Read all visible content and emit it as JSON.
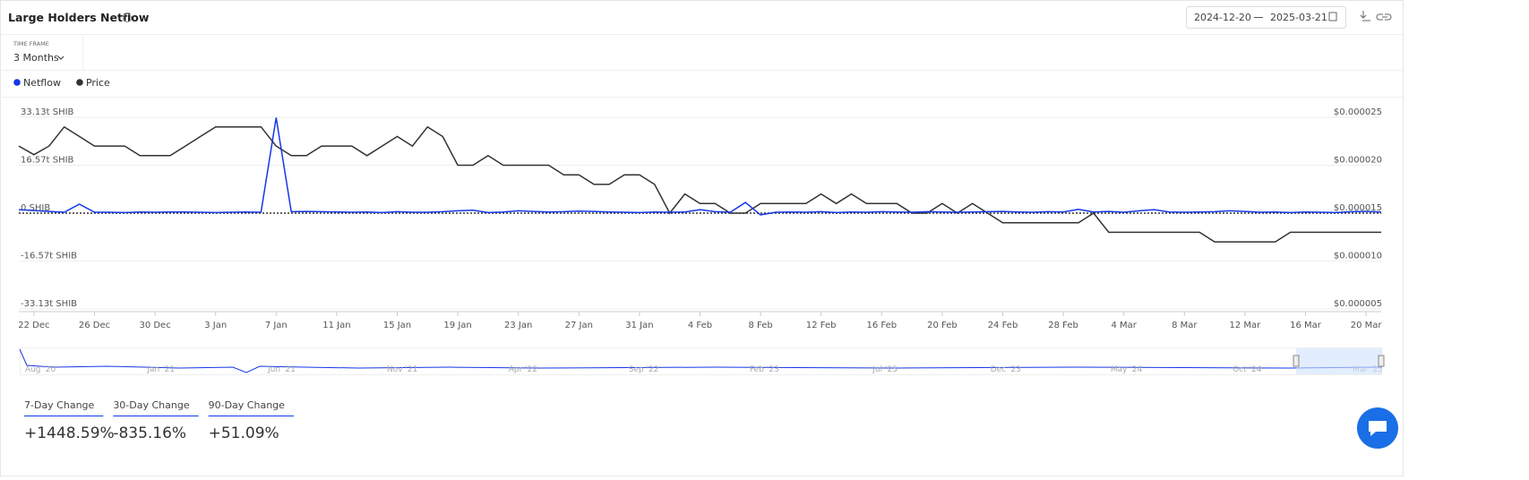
{
  "header": {
    "title": "Large Holders Netflow",
    "date_from": "2024-12-20",
    "date_to": "2025-03-21"
  },
  "time_frame": {
    "label": "TIME FRAME",
    "value": "3 Months"
  },
  "chart_data": {
    "type": "line",
    "categories": [
      null,
      "22 Dec",
      null,
      null,
      null,
      "26 Dec",
      null,
      null,
      null,
      "30 Dec",
      null,
      null,
      null,
      "3 Jan",
      null,
      null,
      null,
      "7 Jan",
      null,
      null,
      null,
      "11 Jan",
      null,
      null,
      null,
      "15 Jan",
      null,
      null,
      null,
      "19 Jan",
      null,
      null,
      null,
      "23 Jan",
      null,
      null,
      null,
      "27 Jan",
      null,
      null,
      null,
      "31 Jan",
      null,
      null,
      null,
      "4 Feb",
      null,
      null,
      null,
      "8 Feb",
      null,
      null,
      null,
      "12 Feb",
      null,
      null,
      null,
      "16 Feb",
      null,
      null,
      null,
      "20 Feb",
      null,
      null,
      null,
      "24 Feb",
      null,
      null,
      null,
      "28 Feb",
      null,
      null,
      null,
      "4 Mar",
      null,
      null,
      null,
      "8 Mar",
      null,
      null,
      null,
      "12 Mar",
      null,
      null,
      null,
      "16 Mar",
      null,
      null,
      null,
      "20 Mar",
      null
    ],
    "series": [
      {
        "name": "Netflow",
        "color": "#1537e6",
        "values": [
          1.2,
          0.9,
          0.6,
          0.3,
          3.1,
          0.3,
          0.3,
          0.2,
          0.4,
          0.3,
          0.4,
          0.4,
          0.3,
          0.2,
          0.3,
          0.4,
          0.3,
          33.0,
          0.5,
          0.6,
          0.5,
          0.4,
          0.3,
          0.4,
          0.2,
          0.5,
          0.3,
          0.3,
          0.5,
          0.8,
          1.0,
          0.2,
          0.4,
          0.8,
          0.6,
          0.4,
          0.5,
          0.7,
          0.6,
          0.4,
          0.3,
          0.2,
          0.4,
          0.3,
          0.4,
          1.2,
          0.5,
          0.3,
          3.7,
          -0.6,
          0.3,
          0.4,
          0.3,
          0.5,
          0.2,
          0.4,
          0.3,
          0.5,
          0.4,
          0.3,
          0.5,
          0.4,
          0.3,
          0.4,
          0.5,
          0.6,
          0.4,
          0.3,
          0.5,
          0.4,
          1.3,
          0.4,
          0.6,
          0.3,
          0.8,
          1.2,
          0.4,
          0.3,
          0.4,
          0.5,
          0.8,
          0.6,
          0.3,
          0.4,
          0.2,
          0.4,
          0.3,
          0.2,
          0.5,
          0.6,
          0.4
        ]
      },
      {
        "name": "Price",
        "color": "#333333",
        "axis": "y2",
        "values": [
          2.2e-05,
          2.11e-05,
          2.2e-05,
          2.4e-05,
          2.3e-05,
          2.2e-05,
          2.2e-05,
          2.2e-05,
          2.1e-05,
          2.1e-05,
          2.1e-05,
          2.2e-05,
          2.3e-05,
          2.4e-05,
          2.4e-05,
          2.4e-05,
          2.4e-05,
          2.2e-05,
          2.1e-05,
          2.1e-05,
          2.2e-05,
          2.2e-05,
          2.2e-05,
          2.1e-05,
          2.2e-05,
          2.3e-05,
          2.2e-05,
          2.4e-05,
          2.3e-05,
          2e-05,
          2e-05,
          2.1e-05,
          2e-05,
          2e-05,
          2e-05,
          2e-05,
          1.9e-05,
          1.9e-05,
          1.8e-05,
          1.8e-05,
          1.9e-05,
          1.9e-05,
          1.8e-05,
          1.5e-05,
          1.7e-05,
          1.6e-05,
          1.6e-05,
          1.5e-05,
          1.5e-05,
          1.6e-05,
          1.6e-05,
          1.6e-05,
          1.6e-05,
          1.7e-05,
          1.6e-05,
          1.7e-05,
          1.6e-05,
          1.6e-05,
          1.6e-05,
          1.5e-05,
          1.5e-05,
          1.6e-05,
          1.5e-05,
          1.6e-05,
          1.5e-05,
          1.4e-05,
          1.4e-05,
          1.4e-05,
          1.4e-05,
          1.4e-05,
          1.4e-05,
          1.5e-05,
          1.3e-05,
          1.3e-05,
          1.3e-05,
          1.3e-05,
          1.3e-05,
          1.3e-05,
          1.3e-05,
          1.2e-05,
          1.2e-05,
          1.2e-05,
          1.2e-05,
          1.2e-05,
          1.3e-05,
          1.3e-05,
          1.3e-05,
          1.3e-05,
          1.3e-05,
          1.3e-05,
          1.3e-05
        ]
      }
    ],
    "ylim": [
      -33.13,
      33.13
    ],
    "yticks": [
      {
        "value": -33.13,
        "label": "-33.13t SHIB"
      },
      {
        "value": -16.57,
        "label": "-16.57t SHIB"
      },
      {
        "value": 0,
        "label": "0 SHIB"
      },
      {
        "value": 16.57,
        "label": "16.57t SHIB"
      },
      {
        "value": 33.13,
        "label": "33.13t SHIB"
      }
    ],
    "y2lim": [
      5e-06,
      2.5e-05
    ],
    "y2ticks": [
      {
        "value": 5e-06,
        "label": "$0.000005"
      },
      {
        "value": 1e-05,
        "label": "$0.000010"
      },
      {
        "value": 1.5e-05,
        "label": "$0.000015"
      },
      {
        "value": 2e-05,
        "label": "$0.000020"
      },
      {
        "value": 2.5e-05,
        "label": "$0.000025"
      }
    ],
    "grid": true
  },
  "navigator": {
    "labels": [
      "Aug '20",
      "Jan '21",
      "Jun '21",
      "Nov '21",
      "Apr '22",
      "Sep '22",
      "Feb '23",
      "Jul '23",
      "Dec '23",
      "May '24",
      "Oct '24",
      "Mar '25"
    ]
  },
  "stats": [
    {
      "label": "7-Day Change",
      "value": "+1448.59%"
    },
    {
      "label": "30-Day Change",
      "value": "-835.16%"
    },
    {
      "label": "90-Day Change",
      "value": "+51.09%"
    }
  ]
}
